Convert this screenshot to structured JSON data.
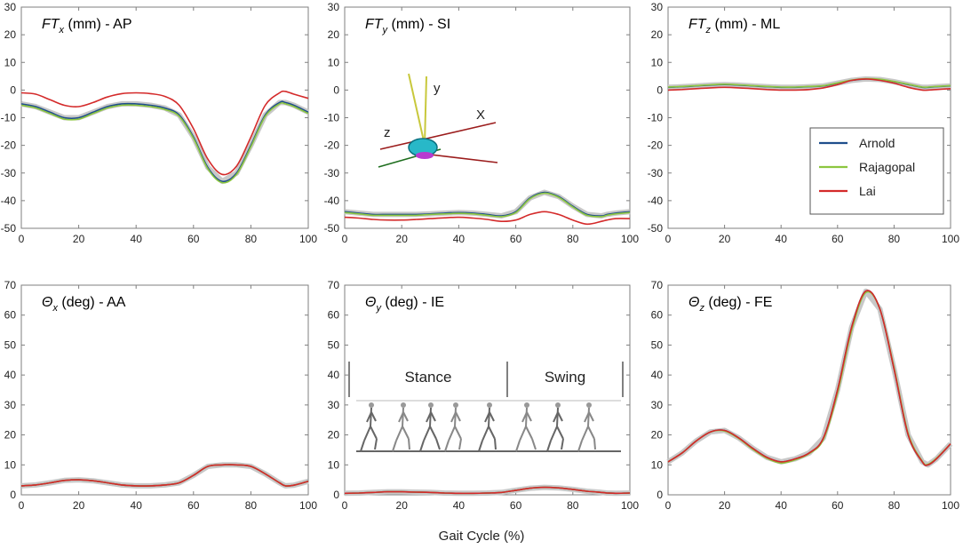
{
  "chart_data": {
    "type": "line",
    "xlabel": "Gait Cycle (%)",
    "x": [
      0,
      5,
      10,
      15,
      20,
      25,
      30,
      35,
      40,
      45,
      50,
      55,
      60,
      65,
      70,
      75,
      80,
      85,
      90,
      92,
      95,
      100
    ],
    "legend": {
      "placement": "inside FT_z panel, bottom-right",
      "entries": [
        {
          "name": "Arnold",
          "color": "#1f4e8c"
        },
        {
          "name": "Rajagopal",
          "color": "#8cc63f"
        },
        {
          "name": "Lai",
          "color": "#d42a2a"
        }
      ]
    },
    "panels": [
      {
        "id": "ftx",
        "title": {
          "sym": "FT",
          "sub": "x",
          "rest": " (mm) - AP"
        },
        "xlim": [
          0,
          100
        ],
        "ylim": [
          -50,
          30
        ],
        "xticks": [
          "0",
          "20",
          "40",
          "60",
          "80",
          "100"
        ],
        "yticks": [
          "-50",
          "-40",
          "-30",
          "-20",
          "-10",
          "0",
          "10",
          "20",
          "30"
        ],
        "series": [
          {
            "name": "Arnold",
            "values": [
              -5,
              -6,
              -8,
              -10,
              -10,
              -8,
              -6,
              -5,
              -5,
              -5.5,
              -6.5,
              -9,
              -17,
              -28,
              -33,
              -30,
              -20,
              -9,
              -4.5,
              -4.5,
              -5.5,
              -8
            ]
          },
          {
            "name": "Rajagopal",
            "values": [
              -5.5,
              -6.5,
              -8.5,
              -10.5,
              -10.5,
              -8.5,
              -6.5,
              -5.5,
              -5.5,
              -6,
              -7,
              -9.5,
              -17.5,
              -28.5,
              -33.5,
              -30.5,
              -20.5,
              -9.5,
              -5,
              -5,
              -6,
              -8.5
            ]
          },
          {
            "name": "Lai",
            "values": [
              -1,
              -1.5,
              -3.5,
              -5.5,
              -6,
              -4.5,
              -2.5,
              -1.3,
              -1,
              -1.3,
              -2.3,
              -5.5,
              -14,
              -25,
              -30.5,
              -27.5,
              -17,
              -5.5,
              -1,
              -0.5,
              -1.5,
              -3
            ]
          }
        ]
      },
      {
        "id": "fty",
        "title": {
          "sym": "FT",
          "sub": "y",
          "rest": " (mm) - SI"
        },
        "xlim": [
          0,
          100
        ],
        "ylim": [
          -50,
          30
        ],
        "xticks": [
          "0",
          "20",
          "40",
          "60",
          "80",
          "100"
        ],
        "yticks": [
          "-50",
          "-40",
          "-30",
          "-20",
          "-10",
          "0",
          "10",
          "20",
          "30"
        ],
        "series": [
          {
            "name": "Arnold",
            "values": [
              -44,
              -44.5,
              -45,
              -45,
              -45,
              -45,
              -44.8,
              -44.5,
              -44.3,
              -44.5,
              -45,
              -45.5,
              -44,
              -39,
              -37,
              -38.5,
              -42,
              -45,
              -45.5,
              -45,
              -44.5,
              -44
            ]
          },
          {
            "name": "Rajagopal",
            "values": [
              -44.3,
              -44.8,
              -45.3,
              -45.3,
              -45.3,
              -45.3,
              -45,
              -44.8,
              -44.6,
              -44.8,
              -45.3,
              -45.8,
              -44.3,
              -39.3,
              -37.3,
              -38.8,
              -42.3,
              -45.3,
              -45.8,
              -45.3,
              -44.8,
              -44.3
            ]
          },
          {
            "name": "Lai",
            "values": [
              -46,
              -46.3,
              -46.8,
              -47,
              -47,
              -46.8,
              -46.5,
              -46.2,
              -46,
              -46.3,
              -46.8,
              -47.5,
              -47,
              -45,
              -44,
              -45,
              -47,
              -48.5,
              -47.5,
              -47,
              -46.5,
              -46.5
            ]
          }
        ],
        "annotations": {
          "axis_x": "X",
          "axis_y": "y",
          "axis_z": "z"
        }
      },
      {
        "id": "ftz",
        "title": {
          "sym": "FT",
          "sub": "z",
          "rest": " (mm) - ML"
        },
        "xlim": [
          0,
          100
        ],
        "ylim": [
          -50,
          30
        ],
        "xticks": [
          "0",
          "20",
          "40",
          "60",
          "80",
          "100"
        ],
        "yticks": [
          "-50",
          "-40",
          "-30",
          "-20",
          "-10",
          "0",
          "10",
          "20",
          "30"
        ],
        "series": [
          {
            "name": "Arnold",
            "values": [
              1,
              1.2,
              1.5,
              1.8,
              2,
              1.8,
              1.5,
              1.2,
              1,
              1,
              1.2,
              1.5,
              2.5,
              3.5,
              4,
              3.8,
              3,
              2,
              1,
              1,
              1.2,
              1.5
            ]
          },
          {
            "name": "Rajagopal",
            "values": [
              1.1,
              1.3,
              1.6,
              1.9,
              2.1,
              1.9,
              1.6,
              1.3,
              1.1,
              1.1,
              1.3,
              1.6,
              2.6,
              3.6,
              4.1,
              3.9,
              3.1,
              2.1,
              1.1,
              1.1,
              1.3,
              1.6
            ]
          },
          {
            "name": "Lai",
            "values": [
              0,
              0.2,
              0.5,
              0.8,
              1,
              0.8,
              0.5,
              0.2,
              0,
              0,
              0.2,
              0.8,
              2,
              3.5,
              4,
              3.5,
              2.5,
              1,
              0,
              0,
              0.2,
              0.5
            ]
          }
        ]
      },
      {
        "id": "thx",
        "title": {
          "sym": "Θ",
          "sub": "x",
          "rest": " (deg) - AA"
        },
        "xlim": [
          0,
          100
        ],
        "ylim": [
          0,
          70
        ],
        "xticks": [
          "0",
          "20",
          "40",
          "60",
          "80",
          "100"
        ],
        "yticks": [
          "0",
          "10",
          "20",
          "30",
          "40",
          "50",
          "60",
          "70"
        ],
        "series": [
          {
            "name": "Arnold",
            "values": [
              3,
              3.3,
              4,
              4.8,
              5,
              4.7,
              4,
              3.3,
              3,
              3,
              3.3,
              4,
              6.5,
              9.5,
              10,
              10,
              9.5,
              7,
              4,
              3,
              3.2,
              4.5
            ]
          },
          {
            "name": "Rajagopal",
            "values": [
              3,
              3.3,
              4,
              4.8,
              5,
              4.7,
              4,
              3.3,
              3,
              3,
              3.3,
              4,
              6.5,
              9.5,
              10,
              10,
              9.5,
              7,
              4,
              3,
              3.2,
              4.5
            ]
          },
          {
            "name": "Lai",
            "values": [
              3,
              3.3,
              4,
              4.8,
              5,
              4.7,
              4,
              3.3,
              3,
              3,
              3.3,
              4,
              6.5,
              9.5,
              10,
              10,
              9.5,
              7,
              4,
              3,
              3.2,
              4.5
            ]
          }
        ]
      },
      {
        "id": "thy",
        "title": {
          "sym": "Θ",
          "sub": "y",
          "rest": " (deg) - IE"
        },
        "xlim": [
          0,
          100
        ],
        "ylim": [
          0,
          70
        ],
        "xticks": [
          "0",
          "20",
          "40",
          "60",
          "80",
          "100"
        ],
        "yticks": [
          "0",
          "10",
          "20",
          "30",
          "40",
          "50",
          "60",
          "70"
        ],
        "phases": {
          "stance": "Stance",
          "swing": "Swing"
        },
        "series": [
          {
            "name": "Arnold",
            "values": [
              0.5,
              0.6,
              0.8,
              1,
              1,
              0.9,
              0.8,
              0.6,
              0.5,
              0.5,
              0.6,
              0.8,
              1.5,
              2.2,
              2.5,
              2.3,
              1.8,
              1.2,
              0.8,
              0.6,
              0.5,
              0.6
            ]
          },
          {
            "name": "Rajagopal",
            "values": [
              0.5,
              0.6,
              0.8,
              1,
              1,
              0.9,
              0.8,
              0.6,
              0.5,
              0.5,
              0.6,
              0.8,
              1.5,
              2.2,
              2.5,
              2.3,
              1.8,
              1.2,
              0.8,
              0.6,
              0.5,
              0.6
            ]
          },
          {
            "name": "Lai",
            "values": [
              0.5,
              0.6,
              0.8,
              1,
              1,
              0.9,
              0.8,
              0.6,
              0.5,
              0.5,
              0.6,
              0.8,
              1.5,
              2.2,
              2.5,
              2.3,
              1.8,
              1.2,
              0.8,
              0.6,
              0.5,
              0.6
            ]
          }
        ]
      },
      {
        "id": "thz",
        "title": {
          "sym": "Θ",
          "sub": "z",
          "rest": " (deg) - FE"
        },
        "xlim": [
          0,
          100
        ],
        "ylim": [
          0,
          70
        ],
        "xticks": [
          "0",
          "20",
          "40",
          "60",
          "80",
          "100"
        ],
        "yticks": [
          "0",
          "10",
          "20",
          "30",
          "40",
          "50",
          "60",
          "70"
        ],
        "series": [
          {
            "name": "Arnold",
            "values": [
              11,
              14,
              18,
              21,
              21.5,
              19,
              15.5,
              12.5,
              11,
              12,
              14,
              19,
              35,
              56,
              68,
              62,
              42,
              20,
              11,
              10,
              12,
              17
            ]
          },
          {
            "name": "Rajagopal",
            "values": [
              11,
              14,
              18,
              21,
              21.3,
              18.8,
              15.2,
              12.2,
              10.6,
              11.7,
              13.8,
              18.5,
              34,
              55,
              67.5,
              62,
              42.5,
              20.5,
              11.2,
              10.2,
              12.2,
              17
            ]
          },
          {
            "name": "Lai",
            "values": [
              11,
              14,
              18,
              21,
              21.5,
              19,
              15.5,
              12.5,
              11,
              12,
              14,
              19,
              35,
              56,
              68,
              62,
              42,
              20,
              11,
              10,
              12,
              17
            ]
          }
        ]
      }
    ]
  }
}
